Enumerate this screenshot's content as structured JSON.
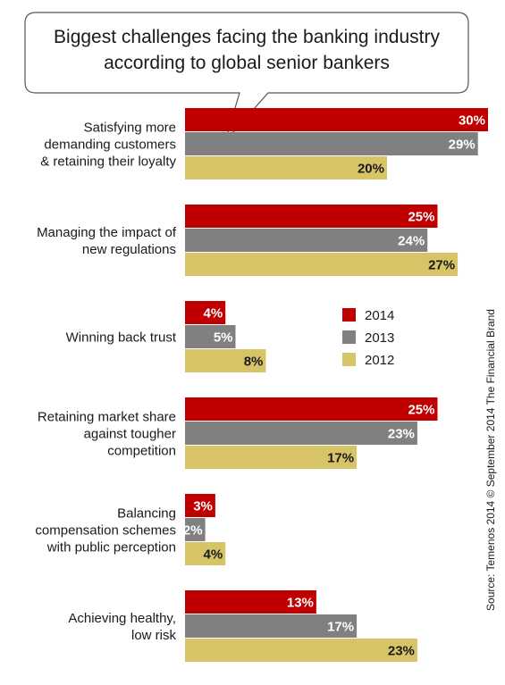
{
  "chart_data": {
    "type": "bar",
    "orientation": "horizontal",
    "title": "Biggest challenges facing the banking industry according to global senior bankers",
    "title_lines": [
      "Biggest challenges facing the banking industry",
      "according to global senior bankers"
    ],
    "categories": [
      [
        "Satisfying more",
        "demanding customers",
        "& retaining their loyalty"
      ],
      [
        "Managing the impact of",
        "new regulations"
      ],
      [
        "Winning back trust"
      ],
      [
        "Retaining market share",
        "against tougher",
        "competition"
      ],
      [
        "Balancing",
        "compensation schemes",
        "with public perception"
      ],
      [
        "Achieving healthy,",
        "low risk"
      ]
    ],
    "series": [
      {
        "name": "2014",
        "color": "#c00000",
        "values": [
          30,
          25,
          4,
          25,
          3,
          13
        ],
        "labels": [
          "30%",
          "25%",
          "4%",
          "25%",
          "3%",
          "13%"
        ]
      },
      {
        "name": "2013",
        "color": "#808080",
        "values": [
          29,
          24,
          5,
          23,
          2,
          17
        ],
        "labels": [
          "29%",
          "24%",
          "5%",
          "23%",
          "2%",
          "17%"
        ]
      },
      {
        "name": "2012",
        "color": "#d6c466",
        "values": [
          20,
          27,
          8,
          17,
          4,
          23
        ],
        "labels": [
          "20%",
          "27%",
          "8%",
          "17%",
          "4%",
          "23%"
        ]
      }
    ],
    "xlim": [
      0,
      30
    ],
    "legend": "right",
    "grid": false,
    "source": "Source: Temenos 2014 © September 2014 The Financial Brand"
  }
}
